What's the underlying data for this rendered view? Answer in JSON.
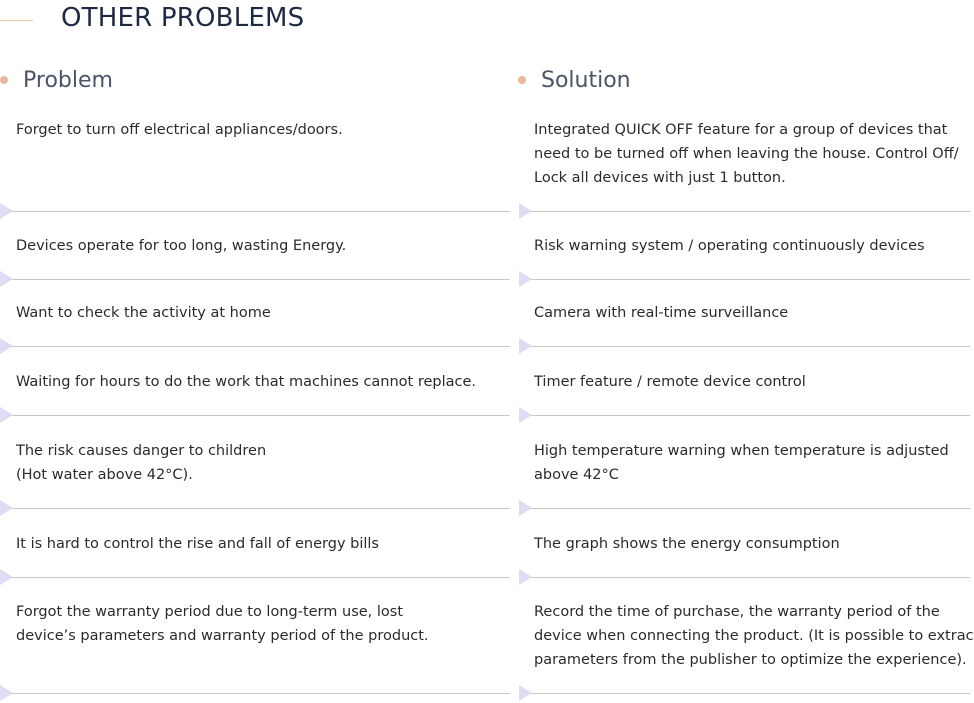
{
  "title": "OTHER PROBLEMS",
  "headers": {
    "problem": "Problem",
    "solution": "Solution"
  },
  "rows": [
    {
      "problem": [
        "Forget to turn off electrical appliances/doors."
      ],
      "solution": [
        "Integrated QUICK OFF feature for a group of devices that",
        "need to be turned off when leaving the house. Control Off/",
        "Lock all devices with just 1 button."
      ]
    },
    {
      "problem": [
        "Devices operate for too long, wasting Energy."
      ],
      "solution": [
        "Risk warning system / operating continuously devices"
      ]
    },
    {
      "problem": [
        "Want to check the activity at home"
      ],
      "solution": [
        "Camera with real-time surveillance"
      ]
    },
    {
      "problem": [
        "Waiting for hours to do the work that machines cannot replace."
      ],
      "solution": [
        "Timer feature / remote device control"
      ]
    },
    {
      "problem": [
        "The risk causes danger to children",
        "(Hot water above 42°C)."
      ],
      "solution": [
        "High temperature warning when temperature is adjusted",
        "above 42°C"
      ]
    },
    {
      "problem": [
        "It is hard to control the rise and fall of energy bills"
      ],
      "solution": [
        "The graph shows the energy consumption"
      ]
    },
    {
      "problem": [
        "Forgot the warranty period due to long-term use, lost",
        "device’s parameters and warranty period of the product."
      ],
      "solution": [
        "Record the time of purchase, the warranty period of the",
        "device when connecting the product. (It is possible to extract",
        "parameters from the publisher to optimize the experience)."
      ]
    }
  ],
  "colors": {
    "title": "#1e2a44",
    "header": "#4a5368",
    "accent_dot": "#efb89c",
    "marker": "#dcdcf3",
    "divider": "#c9c9c9"
  }
}
